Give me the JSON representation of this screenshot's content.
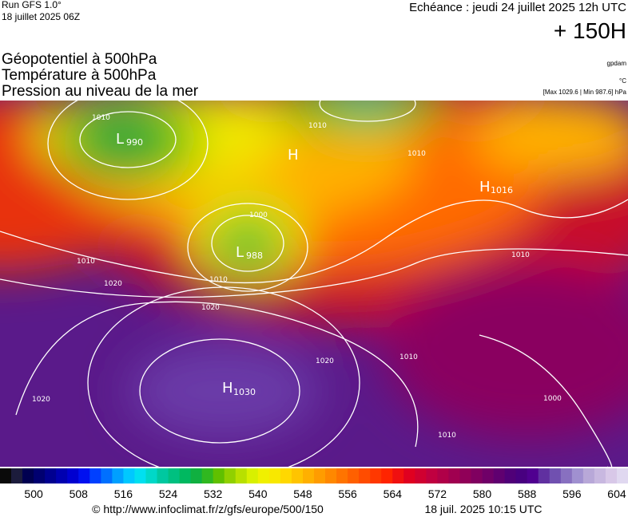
{
  "header": {
    "run": "Run GFS 1.0°",
    "run_date": "18 juillet 2025 06Z",
    "valid": "Echéance : jeudi 24 juillet 2025 12h UTC",
    "lead": "+ 150H"
  },
  "layers": [
    "Géopotentiel à 500hPa",
    "Température à 500hPa",
    "Pression au niveau de la mer"
  ],
  "units": {
    "geopotential": "gpdam",
    "temperature": "°C",
    "pressure": "[Max 1029.6 | Min 987.6] hPa"
  },
  "map": {
    "isobars": [
      "1010",
      "1020",
      "1000",
      "1010",
      "1020",
      "1020",
      "1010",
      "1010",
      "1010",
      "1020",
      "1010",
      "1000",
      "1010",
      "1010"
    ],
    "centers": [
      {
        "kind": "L",
        "value": "990"
      },
      {
        "kind": "H",
        "value": ""
      },
      {
        "kind": "L",
        "value": "988"
      },
      {
        "kind": "H",
        "value": "1016"
      },
      {
        "kind": "H",
        "value": "1030"
      }
    ]
  },
  "colorbar": {
    "colors": [
      "#0a0a0a",
      "#1c1c3c",
      "#000050",
      "#000070",
      "#000090",
      "#0000b0",
      "#0000d0",
      "#0010f0",
      "#0040ff",
      "#0070ff",
      "#00a0ff",
      "#00c8ff",
      "#00e0f0",
      "#00d8c8",
      "#00c8a0",
      "#00c080",
      "#00b860",
      "#10b040",
      "#30b820",
      "#60c000",
      "#90d000",
      "#b8e000",
      "#d8f000",
      "#f0f000",
      "#f8e800",
      "#ffd800",
      "#ffc400",
      "#ffb000",
      "#ff9c00",
      "#ff8800",
      "#ff7400",
      "#ff6000",
      "#ff4c00",
      "#ff3800",
      "#ff2400",
      "#f01010",
      "#e00020",
      "#d00030",
      "#c00040",
      "#b00048",
      "#a00050",
      "#900058",
      "#800060",
      "#700068",
      "#600070",
      "#500078",
      "#480080",
      "#500090",
      "#6030a0",
      "#7050b0",
      "#8870c0",
      "#a090d0",
      "#b8a8d8",
      "#c8b8e0",
      "#d8c8e8",
      "#e0d8f0"
    ],
    "ticks": [
      500,
      508,
      516,
      524,
      532,
      540,
      548,
      556,
      564,
      572,
      580,
      588,
      596,
      604
    ]
  },
  "footer": {
    "source": "© http://www.infoclimat.fr/z/gfs/europe/500/150",
    "generated": "18 juil. 2025 10:15 UTC"
  }
}
